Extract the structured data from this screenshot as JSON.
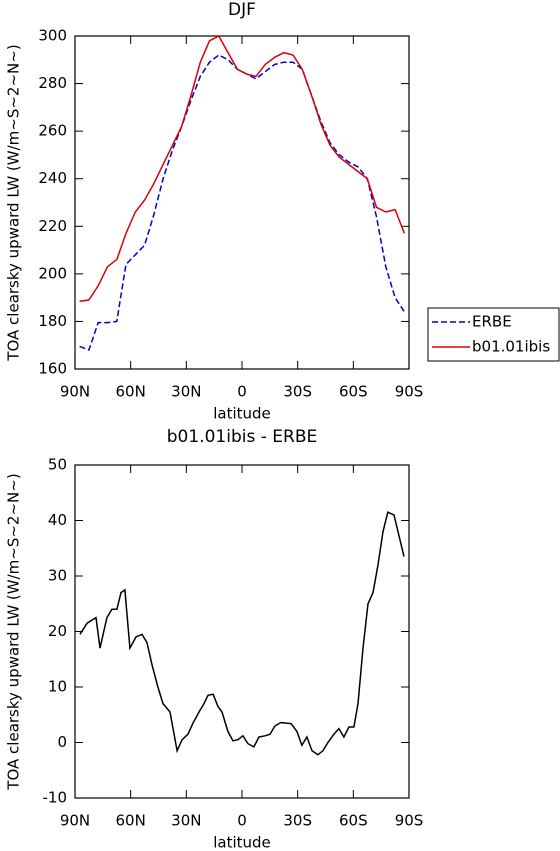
{
  "chart_data": [
    {
      "type": "line",
      "title": "DJF",
      "x_label": "latitude",
      "y_label": "TOA clearsky upward LW (W/m~S~2~N~)",
      "xlim": [
        90,
        -90
      ],
      "xticks": [
        {
          "value": 90,
          "label": "90N"
        },
        {
          "value": 60,
          "label": "60N"
        },
        {
          "value": 30,
          "label": "30N"
        },
        0,
        {
          "value": -30,
          "label": "30S"
        },
        {
          "value": -60,
          "label": "60S"
        },
        {
          "value": -90,
          "label": "90S"
        }
      ],
      "ylim": [
        160,
        300
      ],
      "yticks": [
        160,
        180,
        200,
        220,
        240,
        260,
        280,
        300
      ],
      "x": [
        87.5,
        82.5,
        77.5,
        72.5,
        67.5,
        62.5,
        57.5,
        52.5,
        47.5,
        42.5,
        37.5,
        32.5,
        27.5,
        22.5,
        17.5,
        12.5,
        7.5,
        2.5,
        -2.5,
        -7.5,
        -12.5,
        -17.5,
        -22.5,
        -27.5,
        -32.5,
        -37.5,
        -42.5,
        -47.5,
        -52.5,
        -57.5,
        -62.5,
        -67.5,
        -72.5,
        -77.5,
        -82.5,
        -87.5
      ],
      "legend": "right",
      "series": [
        {
          "name": "ERBE",
          "color": "#0000cc",
          "dash": true,
          "values": [
            169.5,
            168,
            179.5,
            179.5,
            180,
            204,
            208,
            212,
            225,
            240,
            252,
            262,
            273,
            283,
            289,
            292,
            290,
            286,
            284,
            282,
            285,
            288,
            289,
            289,
            286,
            275,
            264,
            255,
            250,
            247,
            245,
            240,
            224,
            203,
            190,
            184
          ]
        },
        {
          "name": "b01.01ibis",
          "color": "#dd0000",
          "dash": false,
          "values": [
            188.5,
            189,
            195,
            203,
            206,
            217,
            226,
            231,
            238,
            246,
            254,
            262,
            275,
            289,
            298,
            300,
            293,
            286,
            284,
            283,
            288,
            291,
            293,
            292,
            286,
            275,
            263,
            254,
            249,
            246,
            243,
            240,
            228,
            226,
            227,
            217
          ]
        }
      ]
    },
    {
      "type": "line",
      "title": "b01.01ibis - ERBE",
      "x_label": "latitude",
      "y_label": "TOA clearsky upward LW (W/m~S~2~N~)",
      "xlim": [
        90,
        -90
      ],
      "xticks": [
        {
          "value": 90,
          "label": "90N"
        },
        {
          "value": 60,
          "label": "60N"
        },
        {
          "value": 30,
          "label": "30N"
        },
        0,
        {
          "value": -30,
          "label": "30S"
        },
        {
          "value": -60,
          "label": "60S"
        },
        {
          "value": -90,
          "label": "90S"
        }
      ],
      "ylim": [
        -10,
        50
      ],
      "yticks": [
        -10,
        0,
        10,
        20,
        30,
        40,
        50
      ],
      "x": [
        87.3,
        83.5,
        78.7,
        76.5,
        72.8,
        70.1,
        67.4,
        65.2,
        63.1,
        60.4,
        57.1,
        53.9,
        51.2,
        48.5,
        45.3,
        42.6,
        38.8,
        35.0,
        32.3,
        29.1,
        26.4,
        23.2,
        20.5,
        18.3,
        15.6,
        13.0,
        10.8,
        7.6,
        4.9,
        2.2,
        -0.5,
        -3.2,
        -6.4,
        -9.1,
        -12.4,
        -15.1,
        -17.8,
        -21.0,
        -23.7,
        -26.4,
        -29.6,
        -32.3,
        -35.0,
        -37.7,
        -40.9,
        -43.6,
        -46.3,
        -49.5,
        -52.2,
        -54.9,
        -57.6,
        -60.3,
        -62.5,
        -65.2,
        -67.9,
        -70.6,
        -73.3,
        -76.0,
        -78.6,
        -81.9,
        -87.3
      ],
      "series": [
        {
          "color": "#000000",
          "dash": false,
          "values": [
            19.5,
            21.5,
            22.5,
            17,
            22.5,
            24,
            24,
            27,
            27.5,
            17,
            19,
            19.5,
            18,
            14,
            10,
            7,
            5.5,
            -1.5,
            0.5,
            1.5,
            3.5,
            5.5,
            7,
            8.5,
            8.7,
            6.5,
            5.5,
            2,
            0.3,
            0.5,
            1.2,
            -0.2,
            -0.8,
            1,
            1.2,
            1.5,
            3,
            3.6,
            3.5,
            3.4,
            2,
            -0.5,
            1,
            -1.5,
            -2.2,
            -1.5,
            0,
            1.5,
            2.5,
            1,
            2.8,
            2.8,
            7,
            17,
            25,
            27,
            32,
            38,
            41.5,
            41,
            33.5
          ]
        }
      ]
    }
  ]
}
